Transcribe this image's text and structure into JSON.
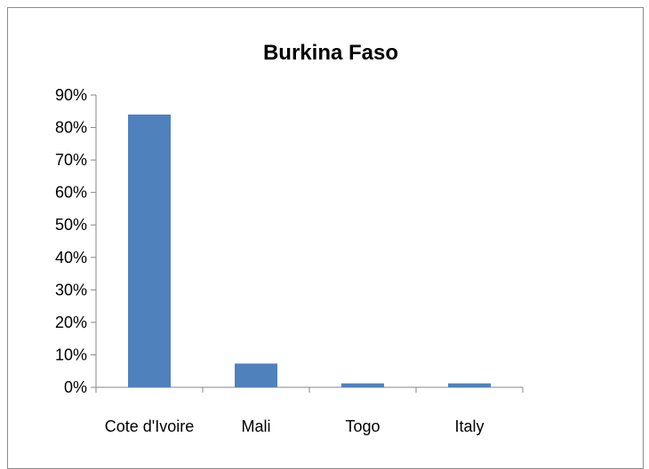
{
  "chart_data": {
    "type": "bar",
    "title": "Burkina Faso",
    "xlabel": "",
    "ylabel": "",
    "categories": [
      "Cote d'Ivoire",
      "Mali",
      "Togo",
      "Italy"
    ],
    "values": [
      84,
      7.3,
      1.2,
      1.2
    ],
    "ylim": [
      0,
      90
    ],
    "ytick_step": 10,
    "ytick_labels": [
      "0%",
      "10%",
      "20%",
      "30%",
      "40%",
      "50%",
      "60%",
      "70%",
      "80%",
      "90%"
    ],
    "grid": false,
    "legend": "none",
    "bar_color": "#4F81BD"
  }
}
